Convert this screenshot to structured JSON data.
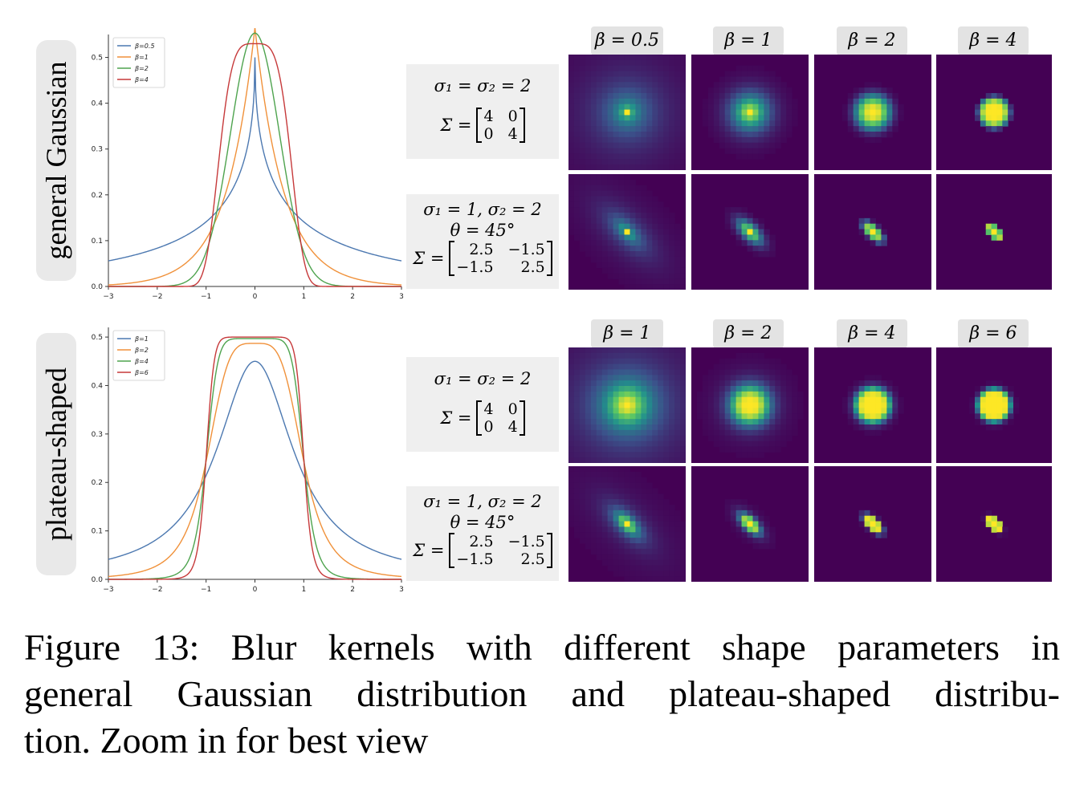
{
  "rows": [
    {
      "label": "general Gaussian",
      "chart_data": {
        "type": "line",
        "xlim": [
          -3,
          3
        ],
        "ylim": [
          0,
          0.55
        ],
        "xticks": [
          "−3",
          "−2",
          "−1",
          "0",
          "1",
          "2",
          "3"
        ],
        "yticks": [
          "0.0",
          "0.1",
          "0.2",
          "0.3",
          "0.4",
          "0.5"
        ],
        "legend_position": "top-left",
        "grid": false,
        "series": [
          {
            "name": "β=0.5",
            "beta": 0.5,
            "color": "#4c78b0",
            "peak": 0.5
          },
          {
            "name": "β=1",
            "beta": 1,
            "color": "#f0913a",
            "peak": 0.565
          },
          {
            "name": "β=2",
            "beta": 2,
            "color": "#4ea34e",
            "peak": 0.553
          },
          {
            "name": "β=4",
            "beta": 4,
            "color": "#c6393a",
            "peak": 0.53
          }
        ]
      },
      "params": [
        {
          "line1": "σ₁ = σ₂ = 2",
          "line2": "",
          "sigma_lbl": "Σ =",
          "matrix": [
            "4",
            "0",
            "0",
            "4"
          ]
        },
        {
          "line1": "σ₁ = 1, σ₂ = 2",
          "line2": "θ = 45°",
          "sigma_lbl": "Σ =",
          "matrix": [
            "2.5",
            "−1.5",
            "−1.5",
            "2.5"
          ]
        }
      ],
      "betas": [
        "β = 0.5",
        "β = 1",
        "β = 2",
        "β = 4"
      ]
    },
    {
      "label": "plateau-shaped",
      "chart_data": {
        "type": "line",
        "xlim": [
          -3,
          3
        ],
        "ylim": [
          0,
          0.52
        ],
        "xticks": [
          "−3",
          "−2",
          "−1",
          "0",
          "1",
          "2",
          "3"
        ],
        "yticks": [
          "0.0",
          "0.1",
          "0.2",
          "0.3",
          "0.4",
          "0.5"
        ],
        "legend_position": "top-left",
        "grid": false,
        "series": [
          {
            "name": "β=1",
            "beta": 1,
            "color": "#4c78b0",
            "peak": 0.45
          },
          {
            "name": "β=2",
            "beta": 2,
            "color": "#f0913a",
            "peak": 0.487
          },
          {
            "name": "β=4",
            "beta": 4,
            "color": "#4ea34e",
            "peak": 0.497
          },
          {
            "name": "β=6",
            "beta": 6,
            "color": "#c6393a",
            "peak": 0.5
          }
        ]
      },
      "params": [
        {
          "line1": "σ₁ = σ₂ = 2",
          "line2": "",
          "sigma_lbl": "Σ =",
          "matrix": [
            "4",
            "0",
            "0",
            "4"
          ]
        },
        {
          "line1": "σ₁ = 1, σ₂ = 2",
          "line2": "θ = 45°",
          "sigma_lbl": "Σ =",
          "matrix": [
            "2.5",
            "−1.5",
            "−1.5",
            "2.5"
          ]
        }
      ],
      "betas": [
        "β = 1",
        "β = 2",
        "β = 4",
        "β = 6"
      ]
    }
  ],
  "caption": {
    "line1": "Figure 13: Blur kernels with different shape parameters in",
    "line2": "general Gaussian distribution and plateau-shaped distribu-",
    "line3": "tion. Zoom in for best view"
  },
  "colors": {
    "kernel_bg": "#440154",
    "kernel_mid": "#21918c",
    "kernel_peak": "#fde725"
  }
}
